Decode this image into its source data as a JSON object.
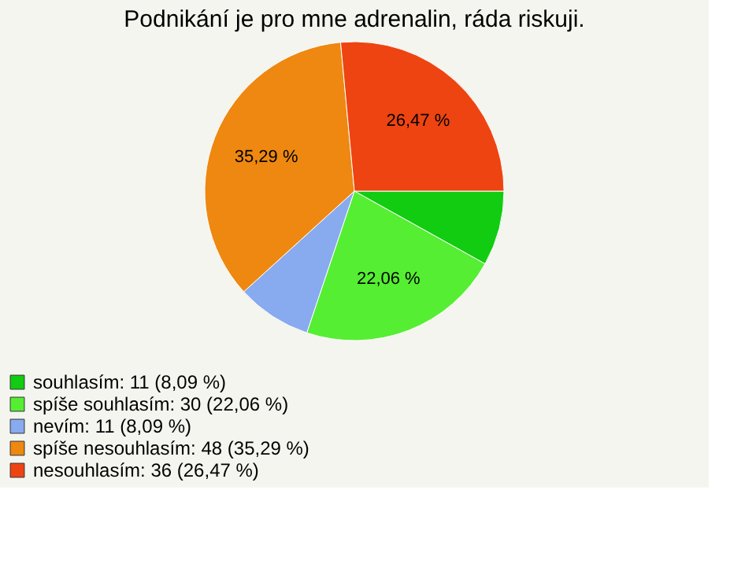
{
  "chart_data": {
    "type": "pie",
    "title": "Podnikání je pro mne adrenalin, ráda riskuji.",
    "categories": [
      "souhlasím: 11 (8,09 %)",
      "spíše souhlasím: 30 (22,06 %)",
      "nevím: 11 (8,09 %)",
      "spíše nesouhlasím: 48 (35,29 %)",
      "nesouhlasím: 36 (26,47 %)"
    ],
    "values": [
      8.09,
      22.06,
      8.09,
      35.29,
      26.47
    ],
    "colors": [
      "#11cc11",
      "#55ee33",
      "#88aaee",
      "#ee8811",
      "#ee4411"
    ],
    "value_labels": [
      null,
      "22,06 %",
      null,
      "35,29 %",
      "26,47 %"
    ],
    "legend": "bottom left"
  }
}
